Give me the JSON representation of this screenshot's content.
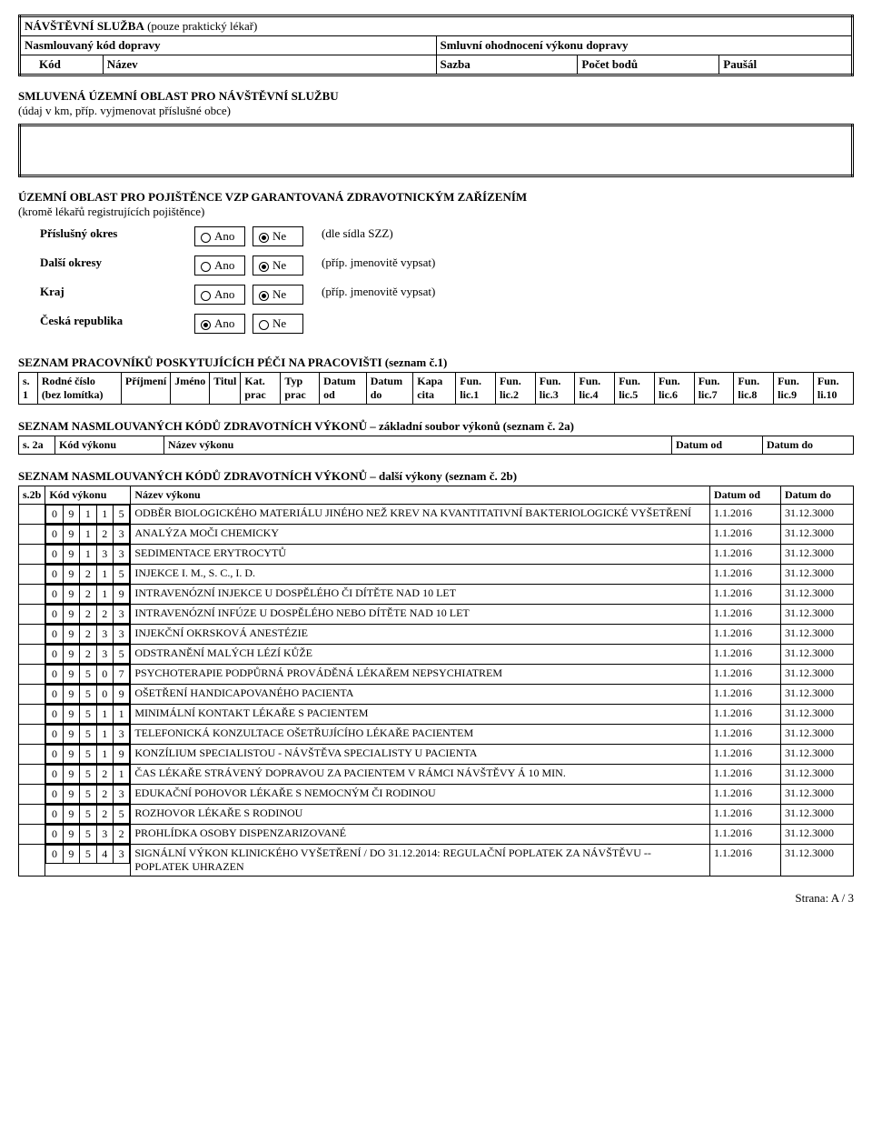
{
  "visit": {
    "title": "NÁVŠTĚVNÍ SLUŽBA",
    "note": "(pouze praktický lékař)",
    "row2_left": "Nasmlouvaný kód dopravy",
    "row2_right": "Smluvní ohodnocení výkonu dopravy",
    "h_kod": "Kód",
    "h_nazev": "Název",
    "h_sazba": "Sazba",
    "h_pocet": "Počet bodů",
    "h_pausal": "Paušál"
  },
  "area": {
    "title": "SMLUVENÁ ÚZEMNÍ OBLAST PRO NÁVŠTĚVNÍ SLUŽBU",
    "sub": "(údaj v km, příp. vyjmenovat příslušné obce)"
  },
  "territory": {
    "title": "ÚZEMNÍ OBLAST PRO POJIŠTĚNCE VZP GARANTOVANÁ ZDRAVOTNICKÝM ZAŘÍZENÍM",
    "sub": "(kromě lékařů registrujících pojištěnce)",
    "yes": "Ano",
    "no": "Ne",
    "rows": [
      {
        "label": "Příslušný okres",
        "note": "(dle sídla SZZ)",
        "sel": "no"
      },
      {
        "label": "Další okresy",
        "note": "(příp. jmenovitě vypsat)",
        "sel": "no"
      },
      {
        "label": "Kraj",
        "note": "(příp. jmenovitě vypsat)",
        "sel": "no"
      },
      {
        "label": "Česká republika",
        "note": "",
        "sel": "yes"
      }
    ]
  },
  "staff": {
    "title": "SEZNAM PRACOVNÍKŮ POSKYTUJÍCÍCH PÉČI NA PRACOVIŠTI (seznam č.1)",
    "headers": [
      "s. 1",
      "Rodné číslo (bez lomítka)",
      "Příjmení",
      "Jméno",
      "Titul",
      "Kat. prac",
      "Typ prac",
      "Datum od",
      "Datum do",
      "Kapa cita",
      "Fun. lic.1",
      "Fun. lic.2",
      "Fun. lic.3",
      "Fun. lic.4",
      "Fun. lic.5",
      "Fun. lic.6",
      "Fun. lic.7",
      "Fun. lic.8",
      "Fun. lic.9",
      "Fun. li.10"
    ]
  },
  "list2a": {
    "title": "SEZNAM NASMLOUVANÝCH KÓDŮ ZDRAVOTNÍCH VÝKONŮ – základní soubor výkonů (seznam č. 2a)",
    "headers": [
      "s. 2a",
      "Kód výkonu",
      "Název výkonu",
      "Datum od",
      "Datum do"
    ]
  },
  "list2b": {
    "title": "SEZNAM NASMLOUVANÝCH KÓDŮ ZDRAVOTNÍCH VÝKONŮ – další výkony (seznam č. 2b)",
    "headers": [
      "s.2b",
      "Kód výkonu",
      "Název výkonu",
      "Datum od",
      "Datum do"
    ],
    "rows": [
      {
        "code": [
          "0",
          "9",
          "1",
          "1",
          "5"
        ],
        "name": "ODBĚR BIOLOGICKÉHO MATERIÁLU JINÉHO NEŽ KREV NA KVANTITATIVNÍ BAKTERIOLOGICKÉ VYŠETŘENÍ",
        "from": "1.1.2016",
        "to": "31.12.3000"
      },
      {
        "code": [
          "0",
          "9",
          "1",
          "2",
          "3"
        ],
        "name": "ANALÝZA MOČI CHEMICKY",
        "from": "1.1.2016",
        "to": "31.12.3000"
      },
      {
        "code": [
          "0",
          "9",
          "1",
          "3",
          "3"
        ],
        "name": "SEDIMENTACE ERYTROCYTŮ",
        "from": "1.1.2016",
        "to": "31.12.3000"
      },
      {
        "code": [
          "0",
          "9",
          "2",
          "1",
          "5"
        ],
        "name": "INJEKCE I. M., S. C., I. D.",
        "from": "1.1.2016",
        "to": "31.12.3000"
      },
      {
        "code": [
          "0",
          "9",
          "2",
          "1",
          "9"
        ],
        "name": "INTRAVENÓZNÍ INJEKCE U DOSPĚLÉHO ČI DÍTĚTE NAD 10 LET",
        "from": "1.1.2016",
        "to": "31.12.3000"
      },
      {
        "code": [
          "0",
          "9",
          "2",
          "2",
          "3"
        ],
        "name": "INTRAVENÓZNÍ INFÚZE U DOSPĚLÉHO NEBO DÍTĚTE NAD 10 LET",
        "from": "1.1.2016",
        "to": "31.12.3000"
      },
      {
        "code": [
          "0",
          "9",
          "2",
          "3",
          "3"
        ],
        "name": "INJEKČNÍ OKRSKOVÁ ANESTÉZIE",
        "from": "1.1.2016",
        "to": "31.12.3000"
      },
      {
        "code": [
          "0",
          "9",
          "2",
          "3",
          "5"
        ],
        "name": "ODSTRANĚNÍ MALÝCH LÉZÍ KŮŽE",
        "from": "1.1.2016",
        "to": "31.12.3000"
      },
      {
        "code": [
          "0",
          "9",
          "5",
          "0",
          "7"
        ],
        "name": "PSYCHOTERAPIE PODPŮRNÁ PROVÁDĚNÁ LÉKAŘEM NEPSYCHIATREM",
        "from": "1.1.2016",
        "to": "31.12.3000"
      },
      {
        "code": [
          "0",
          "9",
          "5",
          "0",
          "9"
        ],
        "name": "OŠETŘENÍ HANDICAPOVANÉHO PACIENTA",
        "from": "1.1.2016",
        "to": "31.12.3000"
      },
      {
        "code": [
          "0",
          "9",
          "5",
          "1",
          "1"
        ],
        "name": "MINIMÁLNÍ KONTAKT LÉKAŘE S PACIENTEM",
        "from": "1.1.2016",
        "to": "31.12.3000"
      },
      {
        "code": [
          "0",
          "9",
          "5",
          "1",
          "3"
        ],
        "name": "TELEFONICKÁ KONZULTACE OŠETŘUJÍCÍHO LÉKAŘE PACIENTEM",
        "from": "1.1.2016",
        "to": "31.12.3000"
      },
      {
        "code": [
          "0",
          "9",
          "5",
          "1",
          "9"
        ],
        "name": "KONZÍLIUM SPECIALISTOU - NÁVŠTĚVA SPECIALISTY U PACIENTA",
        "from": "1.1.2016",
        "to": "31.12.3000"
      },
      {
        "code": [
          "0",
          "9",
          "5",
          "2",
          "1"
        ],
        "name": "ČAS LÉKAŘE STRÁVENÝ DOPRAVOU ZA PACIENTEM V RÁMCI NÁVŠTĚVY Á 10 MIN.",
        "from": "1.1.2016",
        "to": "31.12.3000"
      },
      {
        "code": [
          "0",
          "9",
          "5",
          "2",
          "3"
        ],
        "name": "EDUKAČNÍ POHOVOR LÉKAŘE S NEMOCNÝM ČI RODINOU",
        "from": "1.1.2016",
        "to": "31.12.3000"
      },
      {
        "code": [
          "0",
          "9",
          "5",
          "2",
          "5"
        ],
        "name": "ROZHOVOR LÉKAŘE S RODINOU",
        "from": "1.1.2016",
        "to": "31.12.3000"
      },
      {
        "code": [
          "0",
          "9",
          "5",
          "3",
          "2"
        ],
        "name": "PROHLÍDKA OSOBY DISPENZARIZOVANÉ",
        "from": "1.1.2016",
        "to": "31.12.3000"
      },
      {
        "code": [
          "0",
          "9",
          "5",
          "4",
          "3"
        ],
        "name": "SIGNÁLNÍ VÝKON KLINICKÉHO VYŠETŘENÍ / DO 31.12.2014: REGULAČNÍ POPLATEK ZA NÁVŠTĚVU -- POPLATEK UHRAZEN",
        "from": "1.1.2016",
        "to": "31.12.3000"
      }
    ]
  },
  "footer": "Strana: A / 3"
}
